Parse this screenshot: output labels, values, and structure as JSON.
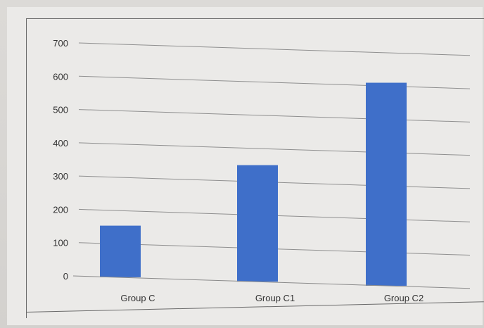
{
  "chart_data": {
    "type": "bar",
    "categories": [
      "Group C",
      "Group C1",
      "Group C2"
    ],
    "values": [
      155,
      350,
      610
    ],
    "yticks": [
      0,
      100,
      200,
      300,
      400,
      500,
      600,
      700
    ],
    "ylim": [
      0,
      700
    ],
    "grid": true,
    "bar_color": "#3f6fc9"
  }
}
